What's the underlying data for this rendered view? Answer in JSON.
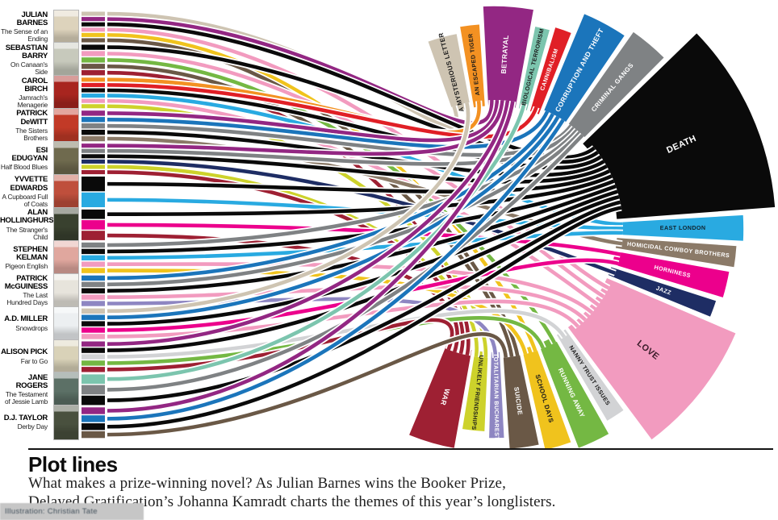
{
  "header": {
    "title": "Plot lines",
    "intro_line1": "What makes a prize-winning novel? As Julian Barnes wins the Booker Prize,",
    "intro_line2": "Delayed Gratification’s Johanna Kamradt charts the themes of this year’s longlisters.",
    "credit": "Illustration: Christian Tate"
  },
  "themes": [
    {
      "id": "a-mysterious-letter",
      "label": "A MYSTERIOUS LETTER",
      "color": "#cec4b2",
      "text_color": "#1a1a1a",
      "span": 10,
      "len": 95
    },
    {
      "id": "an-escaped-tiger",
      "label": "AN ESCAPED TIGER",
      "color": "#f39122",
      "text_color": "#1a1a1a",
      "span": 6.5,
      "len": 103
    },
    {
      "id": "betrayal",
      "label": "BETRAYAL",
      "color": "#932783",
      "text_color": "#ffffff",
      "span": 15,
      "len": 125
    },
    {
      "id": "biological-terrorism",
      "label": "BIOLOGICAL TERRORISM",
      "color": "#7cc5ae",
      "text_color": "#1a1a1a",
      "span": 5,
      "len": 105
    },
    {
      "id": "cannibalism",
      "label": "CANNIBALISM",
      "color": "#e01f26",
      "text_color": "#ffffff",
      "span": 5.5,
      "len": 110
    },
    {
      "id": "corruption-and-theft",
      "label": "CORRUPTION AND THEFT",
      "color": "#1b75bb",
      "text_color": "#ffffff",
      "span": 13,
      "len": 138
    },
    {
      "id": "criminal-gangs",
      "label": "CRIMINAL GANGS",
      "color": "#7f8284",
      "text_color": "#ffffff",
      "span": 11,
      "len": 148
    },
    {
      "id": "death",
      "label": "DEATH",
      "color": "#0a0a0a",
      "text_color": "#ffffff",
      "span": 45,
      "len": 198
    },
    {
      "id": "east-london",
      "label": "EAST LONDON",
      "color": "#29aae1",
      "text_color": "#10222e",
      "span": 7,
      "len": 158
    },
    {
      "id": "homicidal-cowboy-brothers",
      "label": "HOMICIDAL COWBOY BROTHERS",
      "color": "#8b7a68",
      "text_color": "#ffffff",
      "span": 6,
      "len": 150
    },
    {
      "id": "horniness",
      "label": "HORNINESS",
      "color": "#ec008c",
      "text_color": "#ffffff",
      "span": 7.5,
      "len": 145
    },
    {
      "id": "jazz",
      "label": "JAZZ",
      "color": "#1e2d64",
      "text_color": "#ffffff",
      "span": 5,
      "len": 138
    },
    {
      "id": "love",
      "label": "LOVE",
      "color": "#f29bbf",
      "text_color": "#3a1b29",
      "span": 34,
      "len": 175
    },
    {
      "id": "nanny-trust-issues",
      "label": "NANNY TRUST ISSUES",
      "color": "#d2d3d5",
      "text_color": "#1a1a1a",
      "span": 6,
      "len": 125
    },
    {
      "id": "running-away",
      "label": "RUNNING AWAY",
      "color": "#74b843",
      "text_color": "#ffffff",
      "span": 9.5,
      "len": 140
    },
    {
      "id": "school-days",
      "label": "SCHOOL DAYS",
      "color": "#f0c31d",
      "text_color": "#1a1a1a",
      "span": 8,
      "len": 130
    },
    {
      "id": "suicide",
      "label": "SUICIDE",
      "color": "#6a5846",
      "text_color": "#ffffff",
      "span": 9,
      "len": 122
    },
    {
      "id": "totalitarian-bucharest",
      "label": "TOTALITARIAN BUCHAREST",
      "color": "#8e86c2",
      "text_color": "#ffffff",
      "span": 5,
      "len": 108
    },
    {
      "id": "unlikely-friendships",
      "label": "UNLIKELY FRIENDSHIPS",
      "color": "#cdd22b",
      "text_color": "#1a1a1a",
      "span": 7.5,
      "len": 100
    },
    {
      "id": "war",
      "label": "WAR",
      "color": "#9e2033",
      "text_color": "#ffffff",
      "span": 14,
      "len": 125
    }
  ],
  "books": [
    {
      "author": "JULIAN BARNES",
      "title": "The Sense of an Ending",
      "cover_color": "#ddd3bc",
      "themes": [
        "a-mysterious-letter",
        "betrayal",
        "death",
        "love",
        "school-days",
        "suicide"
      ]
    },
    {
      "author": "SEBASTIAN BARRY",
      "title": "On Canaan's Side",
      "cover_color": "#c7c9bc",
      "themes": [
        "death",
        "love",
        "running-away",
        "suicide",
        "war"
      ]
    },
    {
      "author": "CAROL BIRCH",
      "title": "Jamrach's Menagerie",
      "cover_color": "#a8251f",
      "themes": [
        "an-escaped-tiger",
        "cannibalism",
        "death",
        "east-london",
        "love",
        "unlikely-friendships"
      ]
    },
    {
      "author": "PATRICK DeWITT",
      "title": "The Sisters Brothers",
      "cover_color": "#c23a27",
      "themes": [
        "betrayal",
        "corruption-and-theft",
        "criminal-gangs",
        "death",
        "homicidal-cowboy-brothers"
      ]
    },
    {
      "author": "ESI EDUGYAN",
      "title": "Half Blood Blues",
      "cover_color": "#6f6a4e",
      "themes": [
        "betrayal",
        "criminal-gangs",
        "death",
        "jazz",
        "unlikely-friendships",
        "war"
      ]
    },
    {
      "author": "YVVETTE EDWARDS",
      "title": "A Cupboard Full of Coats",
      "cover_color": "#bf4f3c",
      "themes": [
        "death",
        "east-london"
      ]
    },
    {
      "author": "ALAN HOLLINGHURST",
      "title": "The Stranger's Child",
      "cover_color": "#39412f",
      "themes": [
        "death",
        "horniness",
        "war"
      ]
    },
    {
      "author": "STEPHEN KELMAN",
      "title": "Pigeon English",
      "cover_color": "#e0a79e",
      "themes": [
        "criminal-gangs",
        "death",
        "east-london",
        "love",
        "school-days"
      ]
    },
    {
      "author": "PATRICK McGUINESS",
      "title": "The Last Hundred Days",
      "cover_color": "#e7e4dc",
      "themes": [
        "corruption-and-theft",
        "criminal-gangs",
        "death",
        "love",
        "totalitarian-bucharest"
      ]
    },
    {
      "author": "A.D. MILLER",
      "title": "Snowdrops",
      "cover_color": "#eceff1",
      "themes": [
        "a-mysterious-letter",
        "corruption-and-theft",
        "death",
        "horniness",
        "love"
      ]
    },
    {
      "author": "ALISON PICK",
      "title": "Far to Go",
      "cover_color": "#d9d2b8",
      "themes": [
        "betrayal",
        "death",
        "nanny-trust-issues",
        "running-away",
        "war"
      ]
    },
    {
      "author": "JANE ROGERS",
      "title": "The Testament of Jessie Lamb",
      "cover_color": "#5c7066",
      "themes": [
        "biological-terrorism",
        "criminal-gangs",
        "death"
      ]
    },
    {
      "author": "D.J. TAYLOR",
      "title": "Derby Day",
      "cover_color": "#49503e",
      "themes": [
        "betrayal",
        "corruption-and-theft",
        "death",
        "suicide"
      ]
    }
  ]
}
